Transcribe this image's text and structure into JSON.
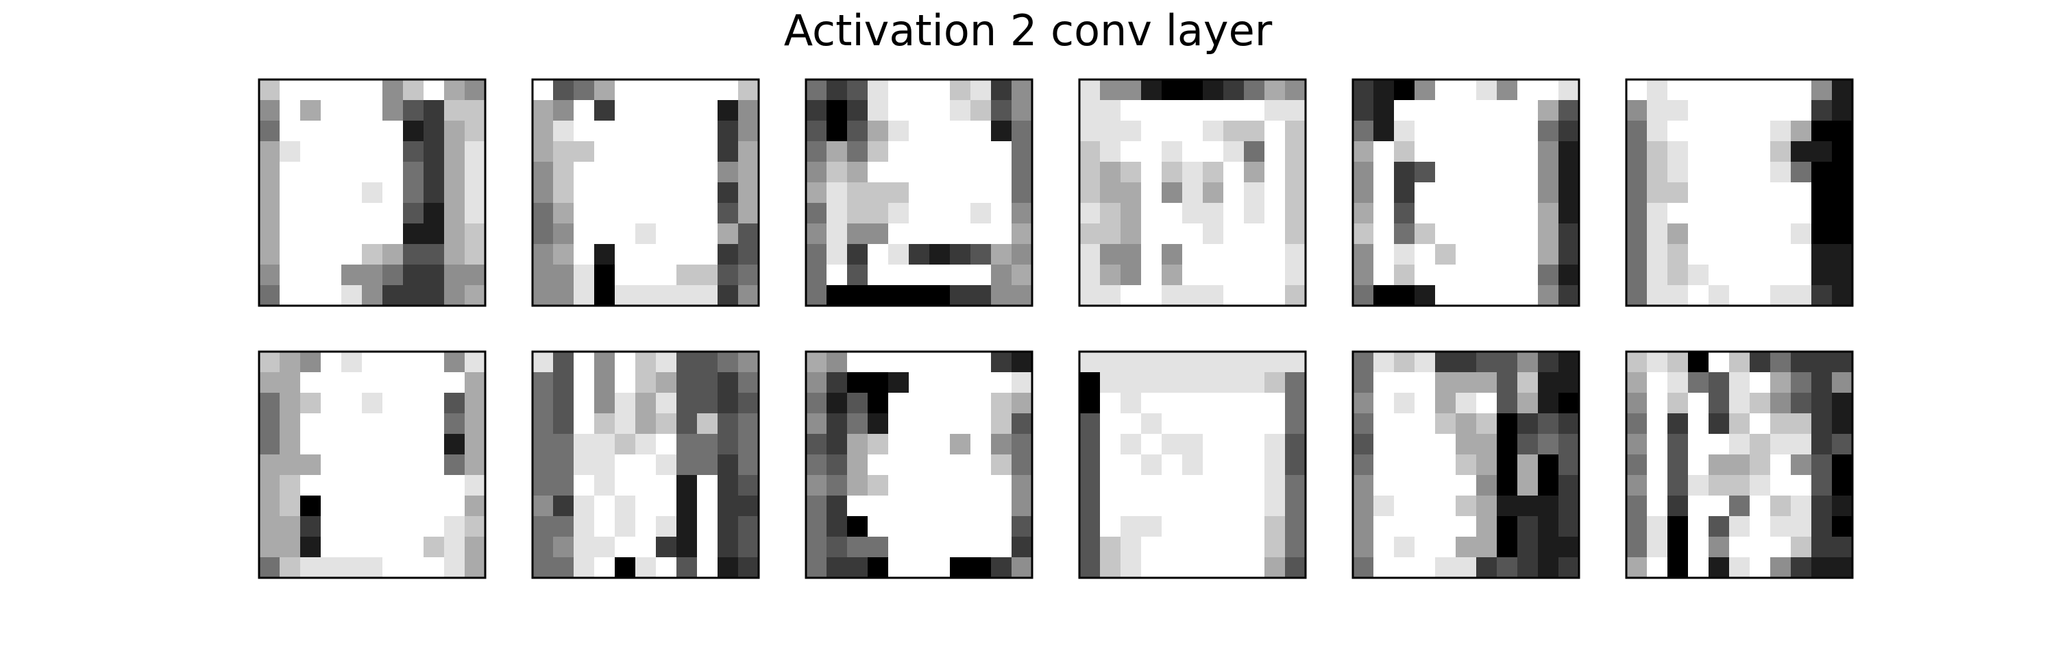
{
  "chart_data": {
    "type": "heatmap",
    "title": "Activation 2 conv layer",
    "colormap": "grayscale",
    "grid_rows": 2,
    "grid_cols": 6,
    "map_size": 11,
    "colors": {
      "background": "#ffffff",
      "frame": "#000000"
    },
    "note_value_scale": "0 = white (low activation), 1 = black (high activation)",
    "maps": [
      [
        "20000042034",
        "40300046722",
        "50000008732",
        "31000006731",
        "30000005731",
        "30000105731",
        "30000006831",
        "30000008832",
        "30000236632",
        "40004457744",
        "50001477743"
      ],
      [
        "06530000002",
        "34070000084",
        "31000000074",
        "32200000073",
        "42000000043",
        "42000000073",
        "53000000063",
        "54000100036",
        "43080000076",
        "44190002265",
        "44191111174"
      ],
      [
        "57610002174",
        "79710001264",
        "69631000085",
        "53520000005",
        "42300000005",
        "31222000005",
        "51221000104",
        "41440000003",
        "51701787634",
        "50600000043",
        "59999997744"
      ],
      [
        "14489987534",
        "11000000011",
        "11100012202",
        "21001001502",
        "23202120302",
        "23304130102",
        "12300110102",
        "22300010002",
        "14404000001",
        "13403000001",
        "11001110002"
      ],
      [
        "78940014001",
        "78000000036",
        "58100000057",
        "30200000048",
        "40760000048",
        "40700000048",
        "30600000038",
        "20520000037",
        "40102000037",
        "40200000058",
        "59980000047"
      ],
      [
        "01000000048",
        "41100000078",
        "51000001399",
        "52100002889",
        "52100001599",
        "52200000099",
        "51000000099",
        "51300000199",
        "51200000088",
        "51210000088",
        "51101001178"
      ],
      [
        "23401000041",
        "33000000003",
        "53200100063",
        "53000000053",
        "53000000083",
        "33300000053",
        "32000000001",
        "32900000003",
        "33700000012",
        "33800000213",
        "52111100013"
      ],
      [
        "16040216654",
        "56040236675",
        "56041316676",
        "56021326265",
        "55112105565",
        "55110015575",
        "55010008076",
        "47101008077",
        "55101018076",
        "54110078076",
        "55109106087"
      ],
      [
        "34000000078",
        "47998000001",
        "58690000023",
        "47580000026",
        "67320003045",
        "56300000025",
        "45320000004",
        "57000000004",
        "57900000006",
        "56550000007",
        "57790009974"
      ],
      [
        "11111111111",
        "91111111125",
        "90100000005",
        "60010000005",
        "60101100016",
        "60010100016",
        "60000000015",
        "60000000015",
        "60110000025",
        "62100000025",
        "62100000036"
      ],
      [
        "51217766478",
        "50003336288",
        "40103106389",
        "50002329767",
        "60000339656",
        "50000239396",
        "40000049397",
        "41000238887",
        "40000039787",
        "40100339788",
        "50001176787"
      ],
      [
        "21290275777",
        "30156103574",
        "40206124678",
        "50707202278",
        "40600121176",
        "50603320469",
        "40612210069",
        "50700502178",
        "51906101179",
        "51904000277",
        "30908104788"
      ]
    ]
  }
}
